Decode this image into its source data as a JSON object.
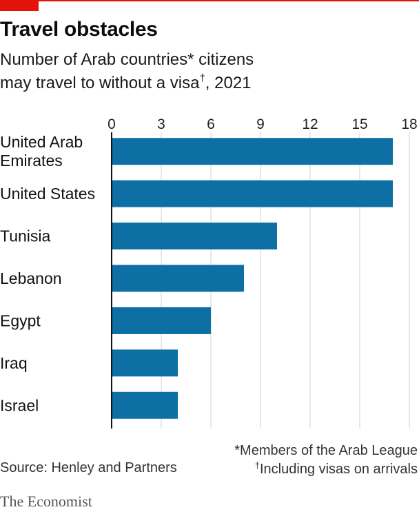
{
  "title": "Travel obstacles",
  "subtitle_line1": "Number of Arab countries* citizens",
  "subtitle_line2_pre": "may travel to without a visa",
  "subtitle_dagger": "†",
  "subtitle_line2_post": ", 2021",
  "footnote1": "*Members of the Arab League",
  "footnote2_dagger": "†",
  "footnote2": "Including visas on arrivals",
  "source": "Source: Henley and Partners",
  "brand": "The Economist",
  "colors": {
    "bar": "#0d6fa3",
    "grid": "#d0d0d0",
    "axis": "#121212",
    "brand_red": "#e3120b"
  },
  "chart_data": {
    "type": "bar",
    "orientation": "horizontal",
    "categories": [
      "United Arab Emirates",
      "United States",
      "Tunisia",
      "Lebanon",
      "Egypt",
      "Iraq",
      "Israel"
    ],
    "category_labels": [
      [
        "United Arab",
        "Emirates"
      ],
      [
        "United States"
      ],
      [
        "Tunisia"
      ],
      [
        "Lebanon"
      ],
      [
        "Egypt"
      ],
      [
        "Iraq"
      ],
      [
        "Israel"
      ]
    ],
    "values": [
      17,
      17,
      10,
      8,
      6,
      4,
      4
    ],
    "xlim": [
      0,
      18
    ],
    "xticks": [
      0,
      3,
      6,
      9,
      12,
      15,
      18
    ],
    "xtick_labels": [
      "0",
      "3",
      "6",
      "9",
      "12",
      "15",
      "18"
    ],
    "xaxis_position": "top",
    "grid": true,
    "legend": "none"
  }
}
